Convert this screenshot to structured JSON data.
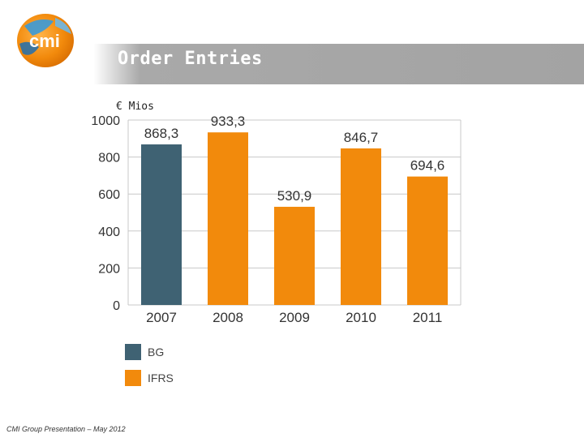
{
  "header": {
    "title": "Order Entries"
  },
  "chart_data": {
    "type": "bar",
    "unit_label": "€ Mios",
    "categories": [
      "2007",
      "2008",
      "2009",
      "2010",
      "2011"
    ],
    "values": [
      868.3,
      933.3,
      530.9,
      846.7,
      694.6
    ],
    "value_labels": [
      "868,3",
      "933,3",
      "530,9",
      "846,7",
      "694,6"
    ],
    "series_of_bar": [
      "BG",
      "IFRS",
      "IFRS",
      "IFRS",
      "IFRS"
    ],
    "ylim": [
      0,
      1000
    ],
    "yticks": [
      0,
      200,
      400,
      600,
      800,
      1000
    ],
    "grid": true,
    "legend": [
      {
        "name": "BG",
        "color": "#3f6273"
      },
      {
        "name": "IFRS",
        "color": "#f28a0c"
      }
    ]
  },
  "footer": {
    "text": "CMI Group Presentation – May 2012"
  }
}
